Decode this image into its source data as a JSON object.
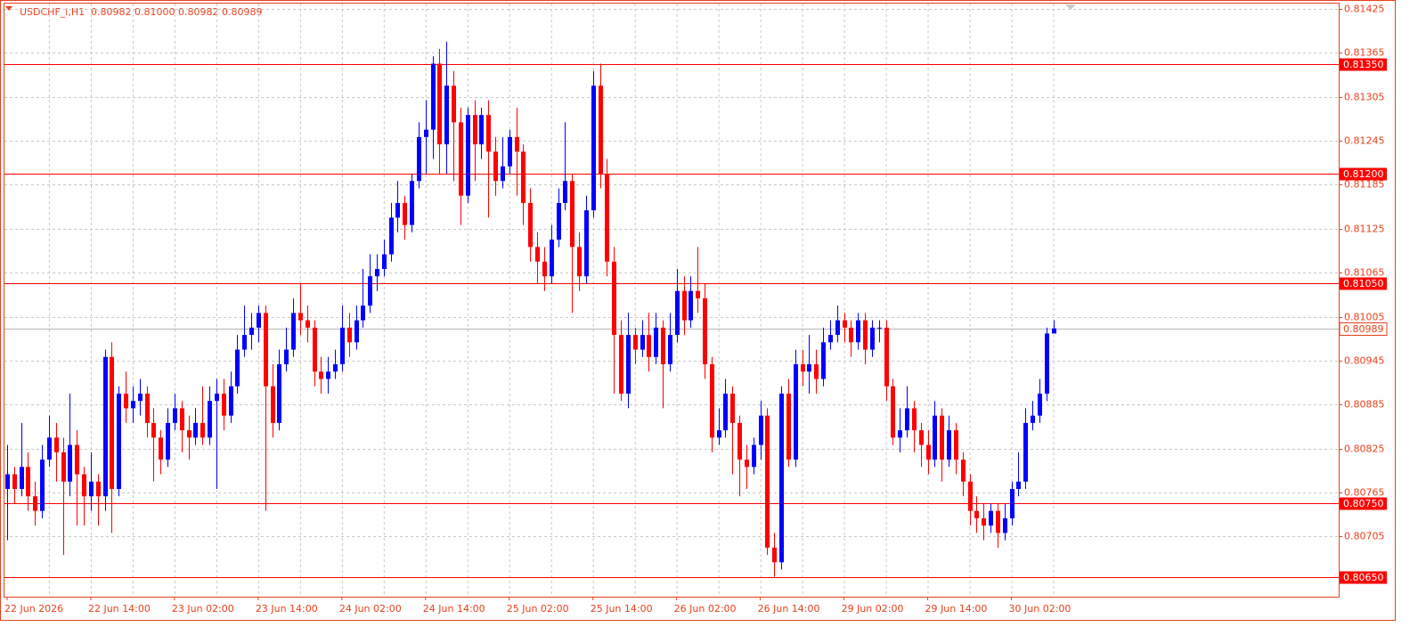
{
  "chart_data": {
    "type": "candlestick",
    "header": {
      "symbol": "USDCHF_i,H1",
      "quote": "0.80982 0.81000 0.80982 0.80989"
    },
    "categories": [
      "22 Jun 2026",
      null,
      null,
      null,
      null,
      null,
      null,
      null,
      null,
      null,
      null,
      null,
      "22 Jun 14:00",
      null,
      null,
      null,
      null,
      null,
      null,
      null,
      null,
      null,
      null,
      null,
      "23 Jun 02:00",
      null,
      null,
      null,
      null,
      null,
      null,
      null,
      null,
      null,
      null,
      null,
      "23 Jun 14:00",
      null,
      null,
      null,
      null,
      null,
      null,
      null,
      null,
      null,
      null,
      null,
      "24 Jun 02:00",
      null,
      null,
      null,
      null,
      null,
      null,
      null,
      null,
      null,
      null,
      null,
      "24 Jun 14:00",
      null,
      null,
      null,
      null,
      null,
      null,
      null,
      null,
      null,
      null,
      null,
      "25 Jun 02:00",
      null,
      null,
      null,
      null,
      null,
      null,
      null,
      null,
      null,
      null,
      null,
      "25 Jun 14:00",
      null,
      null,
      null,
      null,
      null,
      null,
      null,
      null,
      null,
      null,
      null,
      "26 Jun 02:00",
      null,
      null,
      null,
      null,
      null,
      null,
      null,
      null,
      null,
      null,
      null,
      "26 Jun 14:00",
      null,
      null,
      null,
      null,
      null,
      null,
      null,
      null,
      null,
      null,
      null,
      "29 Jun 02:00",
      null,
      null,
      null,
      null,
      null,
      null,
      null,
      null,
      null,
      null,
      null,
      "29 Jun 14:00",
      null,
      null,
      null,
      null,
      null,
      null,
      null,
      null,
      null,
      null,
      null,
      "30 Jun 02:00",
      null,
      null,
      null,
      null,
      null,
      null
    ],
    "open": [
      0.8077,
      0.8079,
      0.8077,
      0.808,
      0.8076,
      0.8074,
      0.8081,
      0.8084,
      0.8082,
      0.8078,
      0.8083,
      0.8079,
      0.8076,
      0.8078,
      0.8076,
      0.8095,
      0.8077,
      0.809,
      0.8088,
      0.8089,
      0.809,
      0.8086,
      0.8084,
      0.8081,
      0.8086,
      0.8088,
      0.8085,
      0.8084,
      0.8086,
      0.8084,
      0.8089,
      0.809,
      0.8087,
      0.8091,
      0.8096,
      0.8098,
      0.8099,
      0.8101,
      0.8091,
      0.8086,
      0.8094,
      0.8096,
      0.8101,
      0.81,
      0.8099,
      0.8093,
      0.8092,
      0.8093,
      0.8094,
      0.8099,
      0.8097,
      0.81,
      0.8102,
      0.8106,
      0.8107,
      0.8109,
      0.8114,
      0.8116,
      0.8113,
      0.8119,
      0.8125,
      0.8126,
      0.8135,
      0.8124,
      0.8132,
      0.8127,
      0.8117,
      0.8128,
      0.8124,
      0.8128,
      0.8123,
      0.8119,
      0.8121,
      0.8125,
      0.8123,
      0.8116,
      0.811,
      0.8108,
      0.8106,
      0.8111,
      0.8116,
      0.8119,
      0.811,
      0.8106,
      0.8115,
      0.8132,
      0.812,
      0.8108,
      0.8098,
      0.809,
      0.8098,
      0.8096,
      0.8098,
      0.8095,
      0.8099,
      0.8094,
      0.8098,
      0.8104,
      0.81,
      0.8104,
      0.8103,
      0.8094,
      0.8084,
      0.8085,
      0.809,
      0.8086,
      0.8081,
      0.808,
      0.8083,
      0.8087,
      0.8069,
      0.8067,
      0.809,
      0.8081,
      0.8094,
      0.8093,
      0.8094,
      0.8092,
      0.8097,
      0.8098,
      0.81,
      0.8099,
      0.8097,
      0.81,
      0.8096,
      0.8099,
      0.8099,
      0.8091,
      0.8084,
      0.8085,
      0.8088,
      0.8085,
      0.8083,
      0.8081,
      0.8087,
      0.8081,
      0.8085,
      0.8081,
      0.8078,
      0.8074,
      0.8073,
      0.8072,
      0.8074,
      0.8071,
      0.8073,
      0.8077,
      0.8078,
      0.8086,
      0.8087,
      0.809,
      0.80982
    ],
    "high": [
      0.8083,
      0.808,
      0.8086,
      0.8082,
      0.8078,
      0.8083,
      0.8087,
      0.8086,
      0.8084,
      0.809,
      0.8085,
      0.808,
      0.8082,
      0.8079,
      0.8096,
      0.8097,
      0.8091,
      0.8093,
      0.8091,
      0.8092,
      0.8091,
      0.8088,
      0.8085,
      0.8088,
      0.809,
      0.8089,
      0.8087,
      0.8088,
      0.8091,
      0.8091,
      0.8092,
      0.8092,
      0.8093,
      0.8098,
      0.8102,
      0.8101,
      0.8102,
      0.8102,
      0.8094,
      0.8096,
      0.8099,
      0.8103,
      0.8105,
      0.8102,
      0.81,
      0.8095,
      0.8095,
      0.8096,
      0.8102,
      0.8101,
      0.8102,
      0.8107,
      0.8109,
      0.8109,
      0.8111,
      0.8116,
      0.8119,
      0.8117,
      0.812,
      0.8127,
      0.813,
      0.8136,
      0.8137,
      0.8138,
      0.8134,
      0.8129,
      0.8129,
      0.813,
      0.8129,
      0.813,
      0.8125,
      0.8125,
      0.8126,
      0.8129,
      0.8124,
      0.8118,
      0.8112,
      0.811,
      0.8113,
      0.8118,
      0.8127,
      0.812,
      0.8112,
      0.8117,
      0.8134,
      0.8135,
      0.8122,
      0.811,
      0.81,
      0.8101,
      0.8099,
      0.81,
      0.8101,
      0.8101,
      0.81,
      0.8101,
      0.8107,
      0.8106,
      0.8106,
      0.811,
      0.8105,
      0.8095,
      0.8088,
      0.8092,
      0.8091,
      0.8087,
      0.8083,
      0.8084,
      0.8089,
      0.8088,
      0.8071,
      0.8091,
      0.8092,
      0.8096,
      0.8096,
      0.8098,
      0.8096,
      0.8099,
      0.81,
      0.8102,
      0.8101,
      0.81,
      0.8101,
      0.8101,
      0.81,
      0.81,
      0.81,
      0.8092,
      0.8088,
      0.8091,
      0.8089,
      0.8086,
      0.8085,
      0.8089,
      0.8088,
      0.8087,
      0.8086,
      0.8082,
      0.8079,
      0.8076,
      0.8075,
      0.8075,
      0.8075,
      0.8075,
      0.8078,
      0.8082,
      0.8088,
      0.8089,
      0.8092,
      0.8099,
      0.81
    ],
    "low": [
      0.807,
      0.8075,
      0.8076,
      0.8074,
      0.8072,
      0.8073,
      0.808,
      0.8078,
      0.8068,
      0.8076,
      0.8072,
      0.8072,
      0.8074,
      0.8072,
      0.8074,
      0.8071,
      0.8076,
      0.8086,
      0.8086,
      0.8087,
      0.8084,
      0.8078,
      0.8079,
      0.808,
      0.8085,
      0.8082,
      0.8081,
      0.8083,
      0.8083,
      0.8083,
      0.8077,
      0.8085,
      0.8086,
      0.809,
      0.8095,
      0.8096,
      0.8097,
      0.8074,
      0.8084,
      0.8085,
      0.8093,
      0.8095,
      0.8098,
      0.8097,
      0.8091,
      0.809,
      0.809,
      0.8092,
      0.8093,
      0.8095,
      0.8096,
      0.8099,
      0.8101,
      0.8104,
      0.8106,
      0.8108,
      0.8112,
      0.8111,
      0.8112,
      0.8118,
      0.812,
      0.8122,
      0.812,
      0.812,
      0.8119,
      0.8113,
      0.8116,
      0.8119,
      0.8122,
      0.8114,
      0.8117,
      0.8118,
      0.812,
      0.8117,
      0.8113,
      0.8108,
      0.8105,
      0.8104,
      0.8105,
      0.811,
      0.8115,
      0.8101,
      0.8104,
      0.8105,
      0.8114,
      0.8118,
      0.8106,
      0.809,
      0.8089,
      0.8088,
      0.8094,
      0.8095,
      0.8093,
      0.8094,
      0.8088,
      0.8093,
      0.8097,
      0.8098,
      0.8099,
      0.8101,
      0.8092,
      0.8082,
      0.8083,
      0.8084,
      0.8079,
      0.8076,
      0.8077,
      0.8079,
      0.8081,
      0.8068,
      0.8065,
      0.8066,
      0.808,
      0.808,
      0.8091,
      0.809,
      0.809,
      0.8091,
      0.8096,
      0.8097,
      0.8097,
      0.8095,
      0.8096,
      0.8094,
      0.8095,
      0.8097,
      0.8089,
      0.8083,
      0.8082,
      0.8084,
      0.8082,
      0.808,
      0.8079,
      0.808,
      0.8078,
      0.808,
      0.8079,
      0.8076,
      0.8072,
      0.8071,
      0.807,
      0.8071,
      0.8069,
      0.807,
      0.8072,
      0.8076,
      0.8077,
      0.8085,
      0.8086,
      0.8089,
      0.80982
    ],
    "close": [
      0.8079,
      0.8077,
      0.808,
      0.8076,
      0.8074,
      0.8081,
      0.8084,
      0.8082,
      0.8078,
      0.8083,
      0.8079,
      0.8076,
      0.8078,
      0.8076,
      0.8095,
      0.8077,
      0.809,
      0.8088,
      0.8089,
      0.809,
      0.8086,
      0.8084,
      0.8081,
      0.8086,
      0.8088,
      0.8085,
      0.8084,
      0.8086,
      0.8084,
      0.8089,
      0.809,
      0.8087,
      0.8091,
      0.8096,
      0.8098,
      0.8099,
      0.8101,
      0.8091,
      0.8086,
      0.8094,
      0.8096,
      0.8101,
      0.81,
      0.8099,
      0.8093,
      0.8092,
      0.8093,
      0.8094,
      0.8099,
      0.8097,
      0.81,
      0.8102,
      0.8106,
      0.8107,
      0.8109,
      0.8114,
      0.8116,
      0.8113,
      0.8119,
      0.8125,
      0.8126,
      0.8135,
      0.8124,
      0.8132,
      0.8127,
      0.8117,
      0.8128,
      0.8124,
      0.8128,
      0.8123,
      0.8119,
      0.8121,
      0.8125,
      0.8123,
      0.8116,
      0.811,
      0.8108,
      0.8106,
      0.8111,
      0.8116,
      0.8119,
      0.811,
      0.8106,
      0.8115,
      0.8132,
      0.812,
      0.8108,
      0.8098,
      0.809,
      0.8098,
      0.8096,
      0.8098,
      0.8095,
      0.8099,
      0.8094,
      0.8098,
      0.8104,
      0.81,
      0.8104,
      0.8103,
      0.8094,
      0.8084,
      0.8085,
      0.809,
      0.8086,
      0.8081,
      0.808,
      0.8083,
      0.8087,
      0.8069,
      0.8067,
      0.809,
      0.8081,
      0.8094,
      0.8093,
      0.8094,
      0.8092,
      0.8097,
      0.8098,
      0.81,
      0.8099,
      0.8097,
      0.81,
      0.8096,
      0.8099,
      0.8099,
      0.8091,
      0.8084,
      0.8085,
      0.8088,
      0.8085,
      0.8083,
      0.8081,
      0.8087,
      0.8081,
      0.8085,
      0.8081,
      0.8078,
      0.8074,
      0.8073,
      0.8072,
      0.8074,
      0.8071,
      0.8073,
      0.8077,
      0.8078,
      0.8086,
      0.8087,
      0.809,
      0.80982,
      0.80989
    ],
    "up_color": "#0000ff",
    "down_color": "#ff0000",
    "ylim": [
      0.80623,
      0.81432
    ],
    "yticks": [
      0.81425,
      0.81365,
      0.81305,
      0.81245,
      0.81185,
      0.81125,
      0.81065,
      0.81005,
      0.80945,
      0.80885,
      0.80825,
      0.80765,
      0.80705
    ],
    "grid": true,
    "levels": [
      {
        "value": 0.8135,
        "label": "0.81350"
      },
      {
        "value": 0.812,
        "label": "0.81200"
      },
      {
        "value": 0.8105,
        "label": "0.81050"
      },
      {
        "value": 0.8075,
        "label": "0.80750"
      },
      {
        "value": 0.8065,
        "label": "0.80650"
      }
    ],
    "level_color": "#ff0000",
    "bid": 0.80989
  }
}
